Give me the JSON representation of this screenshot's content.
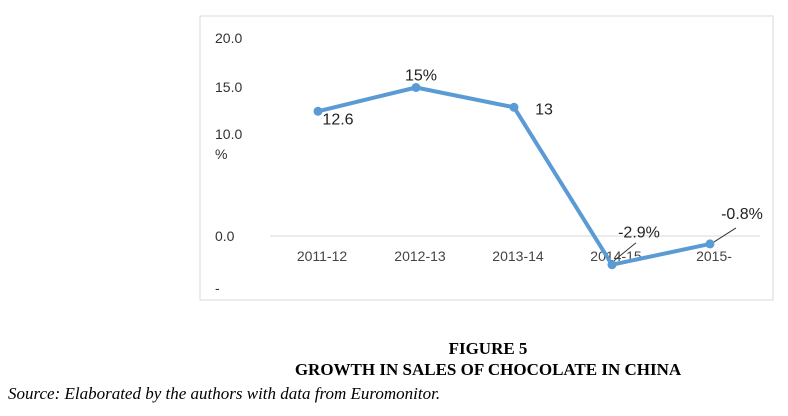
{
  "chart_data": {
    "type": "line",
    "categories": [
      "2011-12",
      "2012-13",
      "2013-14",
      "2014-15",
      "2015-"
    ],
    "series": [
      {
        "values": [
          12.6,
          15,
          13,
          -2.9,
          -0.8
        ],
        "color": "#5b9bd5"
      }
    ],
    "data_labels": [
      "12.6",
      "15%",
      "13",
      "-2.9%",
      "-0.8%"
    ],
    "y_tick_labels": [
      "20.0",
      "15.0",
      "10.0",
      "0.0",
      "-"
    ],
    "ylabel": "%",
    "ylim": [
      -5,
      20
    ],
    "grid": false,
    "legend": "none"
  },
  "caption": {
    "figure_number": "FIGURE 5",
    "title": "GROWTH IN SALES OF CHOCOLATE IN CHINA",
    "source": "Source: Elaborated by the authors with data from Euromonitor."
  }
}
